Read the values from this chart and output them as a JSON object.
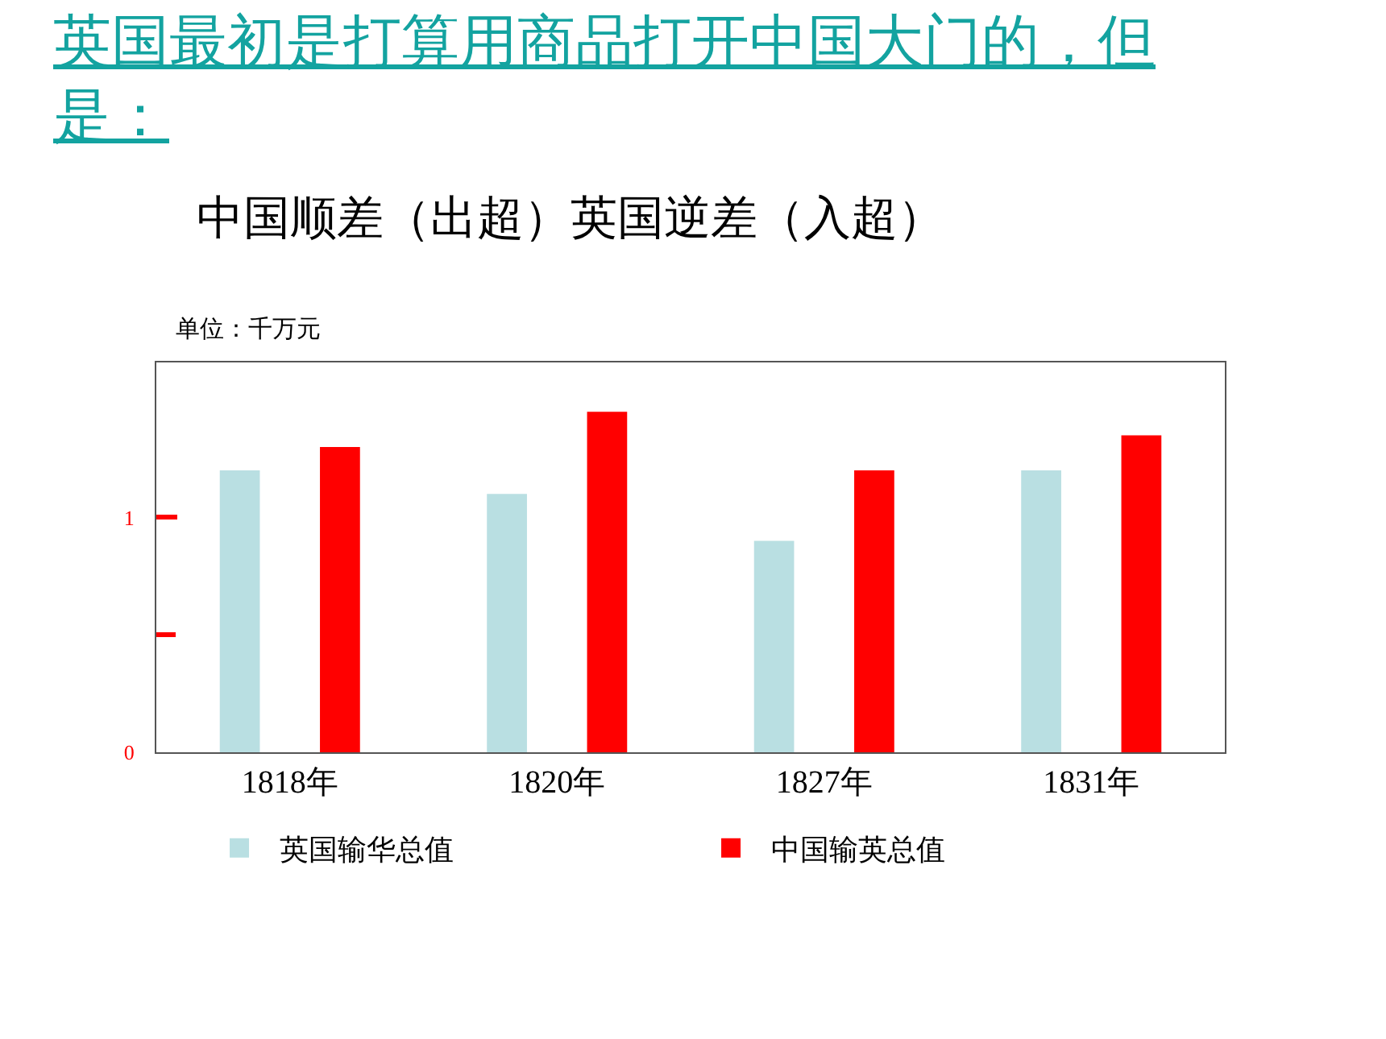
{
  "chart_data": {
    "type": "bar",
    "title": "英国最初是打算用商品打开中国大门的，但是：",
    "subtitle": "中国顺差（出超）英国逆差（入超）",
    "ylabel": "单位：千万元",
    "categories": [
      "1818年",
      "1820年",
      "1827年",
      "1831年"
    ],
    "series": [
      {
        "name": "英国输华总值",
        "color": "#b9dfe2",
        "values": [
          1.2,
          1.1,
          0.9,
          1.2
        ]
      },
      {
        "name": "中国输英总值",
        "color": "#ff0000",
        "values": [
          1.3,
          1.45,
          1.2,
          1.35
        ]
      }
    ],
    "ylim": [
      0,
      1.66
    ],
    "yticks": [
      0,
      {
        "value": 0.5,
        "label": null
      },
      1
    ],
    "grid": false,
    "legend": "bottom"
  }
}
